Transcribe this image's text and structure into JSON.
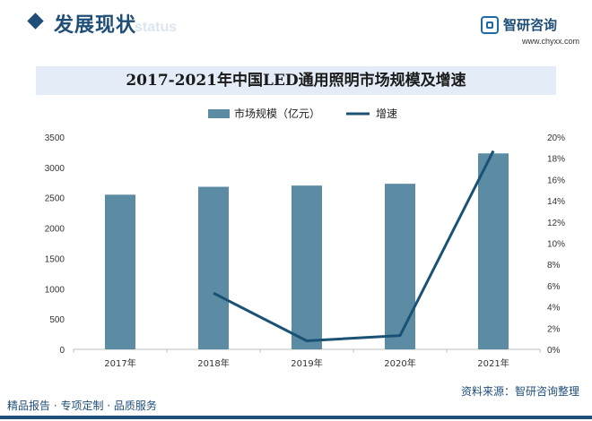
{
  "header": {
    "section_title": "发展现状",
    "section_watermark": "status",
    "brand_name": "智研咨询",
    "brand_url": "www.chyxx.com"
  },
  "footer": {
    "left_text": "精品报告 · 专项定制 · 品质服务",
    "source_text": "资料来源：智研咨询整理"
  },
  "chart_data": {
    "type": "bar",
    "title": "2017-2021年中国LED通用照明市场规模及增速",
    "categories": [
      "2017年",
      "2018年",
      "2019年",
      "2020年",
      "2021年"
    ],
    "series": [
      {
        "name": "市场规模（亿元）",
        "type": "bar",
        "axis": "left",
        "color": "#5b8ca3",
        "values": [
          2550,
          2680,
          2700,
          2730,
          3230
        ]
      },
      {
        "name": "增速",
        "type": "line",
        "axis": "right",
        "color": "#1a5276",
        "values": [
          null,
          5.3,
          0.8,
          1.3,
          18.7
        ]
      }
    ],
    "y_left": {
      "min": 0,
      "max": 3500,
      "ticks": [
        0,
        500,
        1000,
        1500,
        2000,
        2500,
        3000,
        3500
      ]
    },
    "y_right": {
      "min": 0,
      "max": 20,
      "ticks": [
        "0%",
        "2%",
        "4%",
        "6%",
        "8%",
        "10%",
        "12%",
        "14%",
        "16%",
        "18%",
        "20%"
      ]
    },
    "legend_position": "top-center",
    "grid": false
  }
}
